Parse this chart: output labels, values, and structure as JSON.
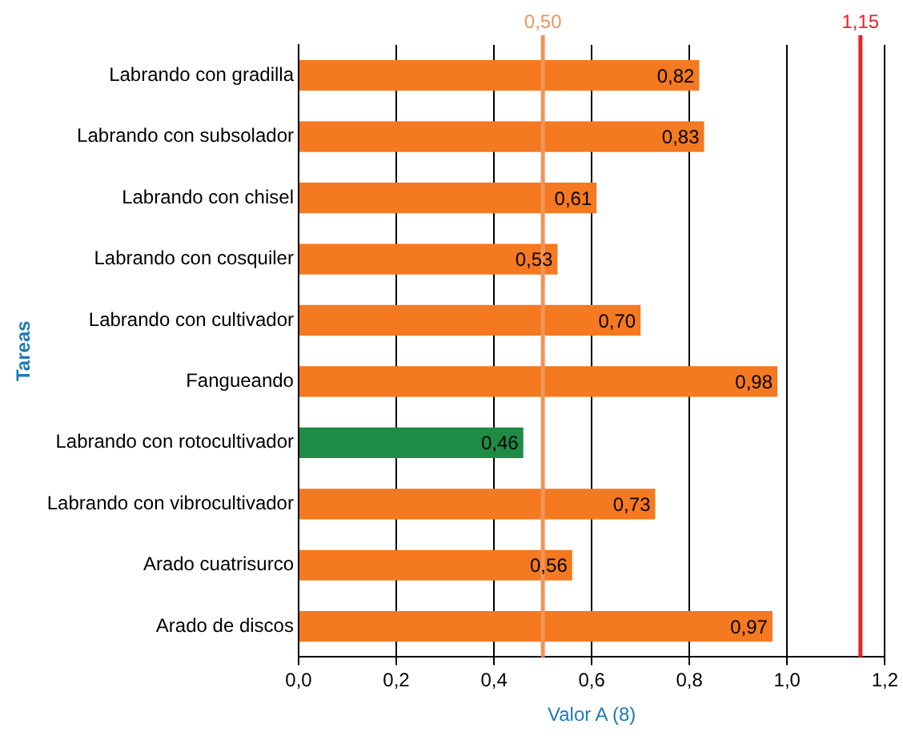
{
  "chart_data": {
    "type": "bar",
    "orientation": "horizontal",
    "xlabel": "Valor A (8)",
    "ylabel": "Tareas",
    "categories": [
      "Labrando con gradilla",
      "Labrando con subsolador",
      "Labrando con chisel",
      "Labrando con cosquiler",
      "Labrando con cultivador",
      "Fangueando",
      "Labrando con rotocultivador",
      "Labrando con vibrocultivador",
      "Arado cuatrisurco",
      "Arado de discos"
    ],
    "values": [
      0.82,
      0.83,
      0.61,
      0.53,
      0.7,
      0.98,
      0.46,
      0.73,
      0.56,
      0.97
    ],
    "colors": [
      "#f47920",
      "#f47920",
      "#f47920",
      "#f47920",
      "#f47920",
      "#f47920",
      "#1e8c45",
      "#f47920",
      "#f47920",
      "#f47920"
    ],
    "value_labels": [
      "0,82",
      "0,83",
      "0,61",
      "0,53",
      "0,70",
      "0,98",
      "0,46",
      "0,73",
      "0,56",
      "0,97"
    ],
    "xlim": [
      0,
      1.2
    ],
    "xticks": [
      {
        "value": 0,
        "label": "0,0"
      },
      {
        "value": 0.2,
        "label": "0,2"
      },
      {
        "value": 0.4,
        "label": "0,4"
      },
      {
        "value": 0.6,
        "label": "0,6"
      },
      {
        "value": 0.8,
        "label": "0,8"
      },
      {
        "value": 1.0,
        "label": "1,0"
      },
      {
        "value": 1.2,
        "label": "1,2"
      }
    ],
    "ref_lines": [
      {
        "axis": "x",
        "value": 0.5,
        "label": "0,50",
        "color": "#f0945a"
      },
      {
        "axis": "x",
        "value": 1.15,
        "label": "1,15",
        "color": "#e3262b"
      }
    ],
    "grid": "x",
    "legend": false
  }
}
